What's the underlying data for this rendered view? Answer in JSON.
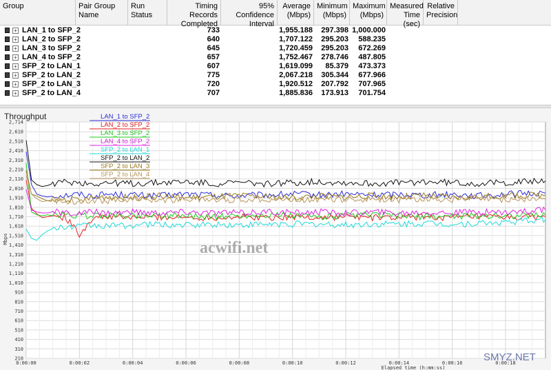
{
  "table": {
    "headers": [
      "Group",
      "Pair Group\nName",
      "Run Status",
      "Timing Records\nCompleted",
      "95% Confidence\nInterval",
      "Average\n(Mbps)",
      "Minimum\n(Mbps)",
      "Maximum\n(Mbps)",
      "Measured\nTime (sec)",
      "Relative\nPrecision"
    ],
    "rows": [
      {
        "name": "LAN_1 to SFP_2",
        "records": "733",
        "average": "1,955.188",
        "minimum": "297.398",
        "maximum": "1,000.000"
      },
      {
        "name": "LAN_2 to SFP_2",
        "records": "640",
        "average": "1,707.122",
        "minimum": "295.203",
        "maximum": "588.235"
      },
      {
        "name": "LAN_3 to SFP_2",
        "records": "645",
        "average": "1,720.459",
        "minimum": "295.203",
        "maximum": "672.269"
      },
      {
        "name": "LAN_4 to SFP_2",
        "records": "657",
        "average": "1,752.467",
        "minimum": "278.746",
        "maximum": "487.805"
      },
      {
        "name": "SFP_2 to LAN_1",
        "records": "607",
        "average": "1,619.099",
        "minimum": "85.379",
        "maximum": "473.373"
      },
      {
        "name": "SFP_2 to LAN_2",
        "records": "775",
        "average": "2,067.218",
        "minimum": "305.344",
        "maximum": "677.966"
      },
      {
        "name": "SFP_2 to LAN_3",
        "records": "720",
        "average": "1,920.512",
        "minimum": "207.792",
        "maximum": "707.965"
      },
      {
        "name": "SFP_2 to LAN_4",
        "records": "707",
        "average": "1,885.836",
        "minimum": "173.913",
        "maximum": "701.754"
      }
    ]
  },
  "chart_data": {
    "type": "line",
    "title": "Throughput",
    "ylabel": "Mbps",
    "xlabel": "Elapsed time (h:mm:ss)",
    "ylim": [
      210,
      2714
    ],
    "yticks": [
      "2,714",
      "2,610",
      "2,510",
      "2,410",
      "2,310",
      "2,210",
      "2,110",
      "2,010",
      "1,910",
      "1,810",
      "1,710",
      "1,610",
      "1,510",
      "1,410",
      "1,310",
      "1,210",
      "1,110",
      "1,010",
      "910",
      "810",
      "710",
      "610",
      "510",
      "410",
      "310",
      "210"
    ],
    "xticks": [
      "0:00:00",
      "0:00:02",
      "0:00:04",
      "0:00:06",
      "0:00:08",
      "0:00:10",
      "0:00:12",
      "0:00:14",
      "0:00:16",
      "0:00:18"
    ],
    "x_seconds": [
      0,
      0.2,
      0.4,
      0.6,
      0.8,
      1,
      1.5,
      2,
      2.5,
      3,
      4,
      5,
      6,
      7,
      8,
      9,
      10,
      11,
      12,
      13,
      14,
      15,
      16,
      17,
      18,
      19.5
    ],
    "series": [
      {
        "name": "LAN_1 to SFP_2",
        "color": "#2b2bd6",
        "values": [
          2400,
          2050,
          1950,
          1930,
          1920,
          1930,
          1940,
          1950,
          1930,
          1950,
          1940,
          1930,
          1950,
          1940,
          1930,
          1940,
          1950,
          1940,
          1950,
          1940,
          1950,
          1940,
          1950,
          1930,
          1950,
          1960
        ]
      },
      {
        "name": "LAN_2 to SFP_2",
        "color": "#e02020",
        "values": [
          2100,
          1800,
          1740,
          1700,
          1710,
          1720,
          1700,
          1520,
          1700,
          1710,
          1700,
          1710,
          1700,
          1700,
          1710,
          1700,
          1710,
          1700,
          1710,
          1700,
          1700,
          1710,
          1700,
          1710,
          1700,
          1710
        ]
      },
      {
        "name": "LAN_3 to SFP_2",
        "color": "#1ec81e",
        "values": [
          2280,
          1760,
          1730,
          1720,
          1730,
          1720,
          1730,
          1720,
          1720,
          1730,
          1720,
          1730,
          1720,
          1710,
          1720,
          1730,
          1720,
          1710,
          1720,
          1730,
          1720,
          1710,
          1720,
          1720,
          1720,
          1730
        ]
      },
      {
        "name": "LAN_4 to SFP_2",
        "color": "#e020e0",
        "values": [
          2000,
          1780,
          1760,
          1750,
          1750,
          1760,
          1750,
          1740,
          1760,
          1750,
          1760,
          1750,
          1760,
          1750,
          1750,
          1760,
          1750,
          1760,
          1750,
          1760,
          1750,
          1760,
          1750,
          1760,
          1760,
          1780
        ]
      },
      {
        "name": "SFP_2 to LAN_1",
        "color": "#20d8d8",
        "values": [
          1580,
          1480,
          1460,
          1520,
          1560,
          1580,
          1600,
          1610,
          1620,
          1610,
          1620,
          1630,
          1620,
          1630,
          1620,
          1630,
          1630,
          1630,
          1620,
          1630,
          1630,
          1640,
          1630,
          1640,
          1650,
          1680
        ]
      },
      {
        "name": "SFP_2 to LAN_2",
        "color": "#111111",
        "values": [
          2520,
          2100,
          2050,
          2030,
          2040,
          2060,
          2080,
          2070,
          2060,
          2070,
          2060,
          2070,
          2080,
          2060,
          2070,
          2060,
          2070,
          2080,
          2070,
          2060,
          2070,
          2080,
          2070,
          2060,
          2070,
          2090
        ]
      },
      {
        "name": "SFP_2 to LAN_3",
        "color": "#9a7a1a",
        "values": [
          2200,
          1950,
          1930,
          1900,
          1880,
          1870,
          1900,
          1880,
          1910,
          1920,
          1910,
          1930,
          1910,
          1920,
          1930,
          1920,
          1910,
          1930,
          1920,
          1930,
          1920,
          1930,
          1910,
          1920,
          1930,
          1940
        ]
      },
      {
        "name": "SFP_2 to LAN_4",
        "color": "#b8955a",
        "values": [
          2150,
          1950,
          1900,
          1870,
          1880,
          1890,
          1870,
          1880,
          1890,
          1880,
          1900,
          1890,
          1900,
          1890,
          1890,
          1900,
          1890,
          1900,
          1890,
          1900,
          1890,
          1900,
          1890,
          1900,
          1890,
          1900
        ]
      }
    ],
    "grid": true,
    "legend_position": "top-left",
    "watermarks": [
      "acwifi.net",
      "SMYZ.NET"
    ]
  }
}
